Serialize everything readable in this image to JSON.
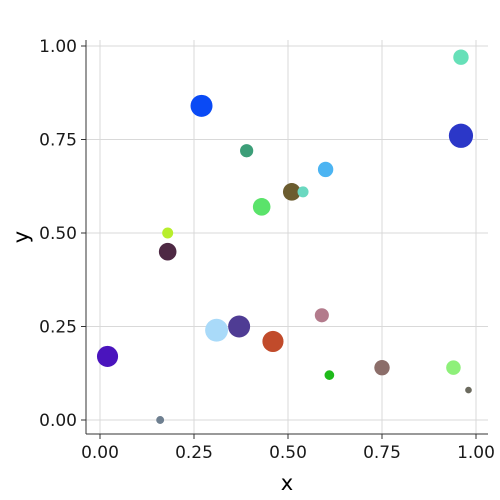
{
  "chart_data": {
    "type": "scatter",
    "title": "",
    "xlabel": "x",
    "ylabel": "y",
    "xlim": [
      0.0,
      1.0
    ],
    "ylim": [
      0.0,
      1.0
    ],
    "x_ticks": [
      "0.00",
      "0.25",
      "0.50",
      "0.75",
      "1.00"
    ],
    "y_ticks": [
      "0.00",
      "0.25",
      "0.50",
      "0.75",
      "1.00"
    ],
    "grid": true,
    "legend": "none",
    "points": [
      {
        "x": 0.96,
        "y": 0.97,
        "size": 3.5,
        "color": "#66e0b8"
      },
      {
        "x": 0.27,
        "y": 0.84,
        "size": 5.0,
        "color": "#0a4af5"
      },
      {
        "x": 0.96,
        "y": 0.76,
        "size": 5.5,
        "color": "#2b37c8"
      },
      {
        "x": 0.39,
        "y": 0.72,
        "size": 3.0,
        "color": "#3c9e78"
      },
      {
        "x": 0.6,
        "y": 0.67,
        "size": 3.5,
        "color": "#4cb4f2"
      },
      {
        "x": 0.51,
        "y": 0.61,
        "size": 4.0,
        "color": "#6b5c2f"
      },
      {
        "x": 0.54,
        "y": 0.61,
        "size": 2.5,
        "color": "#6ad8c0"
      },
      {
        "x": 0.43,
        "y": 0.57,
        "size": 4.0,
        "color": "#5ae36a"
      },
      {
        "x": 0.18,
        "y": 0.5,
        "size": 2.5,
        "color": "#b8ee2c"
      },
      {
        "x": 0.18,
        "y": 0.45,
        "size": 4.0,
        "color": "#4e2944"
      },
      {
        "x": 0.59,
        "y": 0.28,
        "size": 3.2,
        "color": "#b37b8c"
      },
      {
        "x": 0.31,
        "y": 0.24,
        "size": 5.2,
        "color": "#a9daf9"
      },
      {
        "x": 0.37,
        "y": 0.25,
        "size": 5.0,
        "color": "#4f3c94"
      },
      {
        "x": 0.46,
        "y": 0.21,
        "size": 4.8,
        "color": "#c14b2b"
      },
      {
        "x": 0.02,
        "y": 0.17,
        "size": 4.8,
        "color": "#4a14bd"
      },
      {
        "x": 0.75,
        "y": 0.14,
        "size": 3.5,
        "color": "#8c6e6a"
      },
      {
        "x": 0.94,
        "y": 0.14,
        "size": 3.3,
        "color": "#8ef07a"
      },
      {
        "x": 0.61,
        "y": 0.12,
        "size": 2.2,
        "color": "#1fba1a"
      },
      {
        "x": 0.98,
        "y": 0.08,
        "size": 1.5,
        "color": "#6b6a5e"
      },
      {
        "x": 0.16,
        "y": 0.0,
        "size": 1.8,
        "color": "#6e7f90"
      }
    ]
  }
}
